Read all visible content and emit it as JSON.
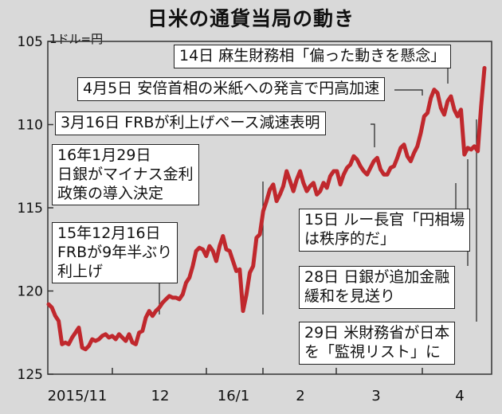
{
  "title": "日米の通貨当局の動き",
  "unit_label": "1ドル=円",
  "chart_data": {
    "type": "line",
    "title": "日米の通貨当局の動き",
    "ylabel": "1ドル=円",
    "y_inverted": true,
    "ylim": [
      125,
      105
    ],
    "yticks": [
      105,
      110,
      115,
      120,
      125
    ],
    "xticks": [
      "2015/11",
      "12",
      "16/1",
      "2",
      "3",
      "4"
    ],
    "grid": false,
    "line_color": "#c0282d",
    "series": [
      {
        "values": [
          120.8,
          121.0,
          121.5,
          121.8,
          123.2,
          123.1,
          123.2,
          122.8,
          122.5,
          122.2,
          123.4,
          123.5,
          123.3,
          122.9,
          123.0,
          122.9,
          122.7,
          122.6,
          122.8,
          122.7,
          122.9,
          122.6,
          122.8,
          123.0,
          122.6,
          123.1,
          123.2,
          122.5,
          122.4,
          121.6,
          121.2,
          121.5,
          121.2,
          121.0,
          120.7,
          120.5,
          120.3,
          120.4,
          120.4,
          120.5,
          120.2,
          119.5,
          119.2,
          118.5,
          117.6,
          117.4,
          117.5,
          117.9,
          117.3,
          117.6,
          118.2,
          117.3,
          116.7,
          117.5,
          117.6,
          118.2,
          118.8,
          118.7,
          121.2,
          120.2,
          118.9,
          118.5,
          116.8,
          116.6,
          115.2,
          114.6,
          113.9,
          113.6,
          114.6,
          114.2,
          113.7,
          112.8,
          113.4,
          114.0,
          113.3,
          112.8,
          113.5,
          114.0,
          113.7,
          113.5,
          114.2,
          114.0,
          113.5,
          113.8,
          113.1,
          112.8,
          112.8,
          113.6,
          113.0,
          112.6,
          112.4,
          111.9,
          112.1,
          112.5,
          112.8,
          113.0,
          112.6,
          112.2,
          112.0,
          112.7,
          113.0,
          113.0,
          112.6,
          112.5,
          112.0,
          111.4,
          111.2,
          111.9,
          112.2,
          111.7,
          111.3,
          110.5,
          109.5,
          109.3,
          108.4,
          107.9,
          108.1,
          109.0,
          109.4,
          108.6,
          108.3,
          109.1,
          109.5,
          109.1,
          111.8,
          111.4,
          111.5,
          111.3,
          111.6,
          108.9,
          106.6
        ]
      }
    ]
  },
  "annotations": {
    "a14": "14日 麻生財務相「偏った動きを懸念」",
    "a45": "4月5日 安倍首相の米紙への発言で円高加速",
    "a316": "3月16日 FRBが利上げペース減速表明",
    "boj_neg": "16年1月29日\n日銀がマイナス金利\n政策の導入決定",
    "fed_hike": "15年12月16日\nFRBが9年半ぶり\n利上げ",
    "lew": "15日 ルー長官「円相場\nは秩序的だ」",
    "boj_hold": "28日 日銀が追加金融\n緩和を見送り",
    "ust": "29日 米財務省が日本\nを「監視リスト」に"
  }
}
